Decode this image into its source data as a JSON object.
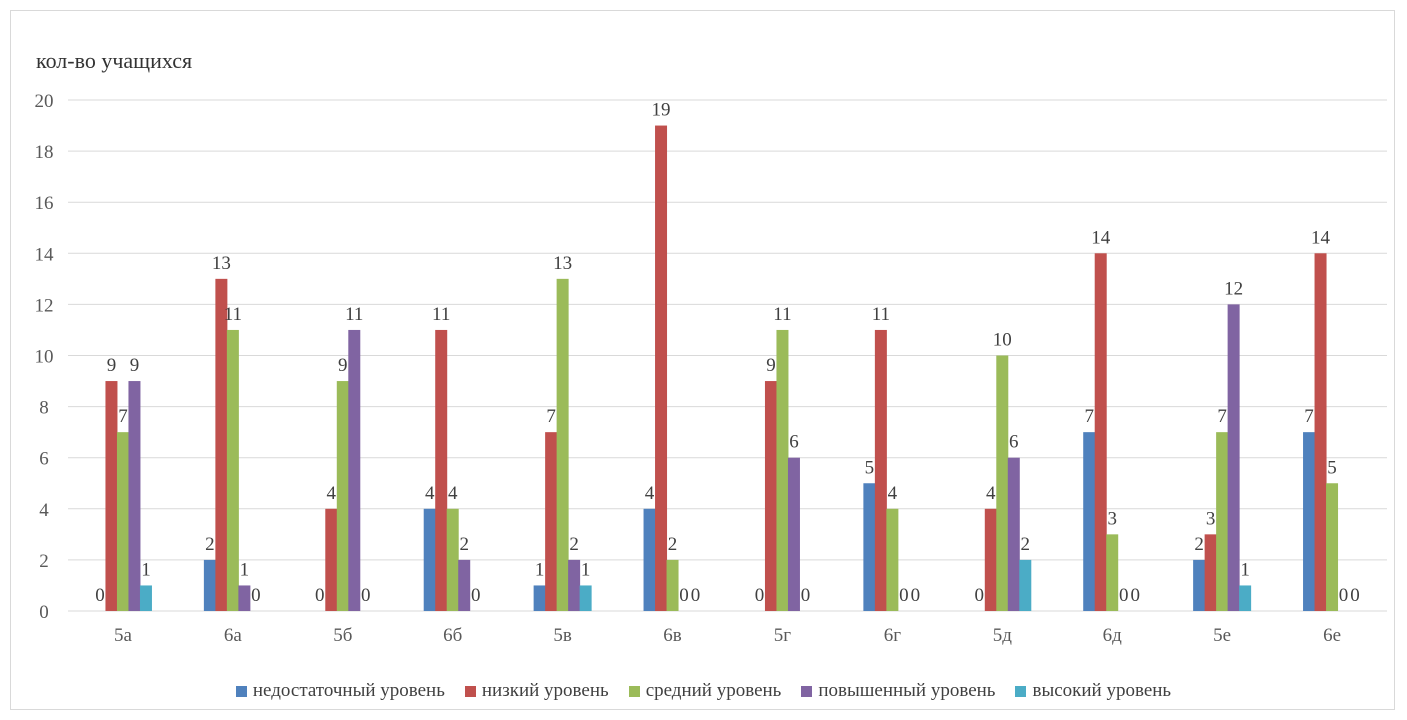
{
  "chart_data": {
    "type": "bar",
    "title": "",
    "xlabel": "",
    "ylabel": "кол-во учащихся",
    "ylim": [
      0,
      20
    ],
    "yticks": [
      0,
      2,
      4,
      6,
      8,
      10,
      12,
      14,
      16,
      18,
      20
    ],
    "grid": true,
    "legend_position": "bottom",
    "categories": [
      "5а",
      "6а",
      "5б",
      "6б",
      "5в",
      "6в",
      "5г",
      "6г",
      "5д",
      "6д",
      "5е",
      "6е"
    ],
    "series": [
      {
        "name": "недостаточный уровень",
        "color": "#4f81bd",
        "values": [
          0,
          2,
          0,
          4,
          1,
          4,
          0,
          5,
          0,
          7,
          2,
          7
        ]
      },
      {
        "name": "низкий уровень",
        "color": "#c0504d",
        "values": [
          9,
          13,
          4,
          11,
          7,
          19,
          9,
          11,
          4,
          14,
          3,
          14
        ]
      },
      {
        "name": "средний уровень",
        "color": "#9bbb59",
        "values": [
          7,
          11,
          9,
          4,
          13,
          2,
          11,
          4,
          10,
          3,
          7,
          5
        ]
      },
      {
        "name": "повышенный уровень",
        "color": "#8064a2",
        "values": [
          9,
          1,
          11,
          2,
          2,
          0,
          6,
          0,
          6,
          0,
          12,
          0
        ]
      },
      {
        "name": "высокий уровень",
        "color": "#4bacc6",
        "values": [
          1,
          0,
          0,
          0,
          1,
          0,
          0,
          0,
          2,
          0,
          1,
          0
        ]
      }
    ]
  }
}
